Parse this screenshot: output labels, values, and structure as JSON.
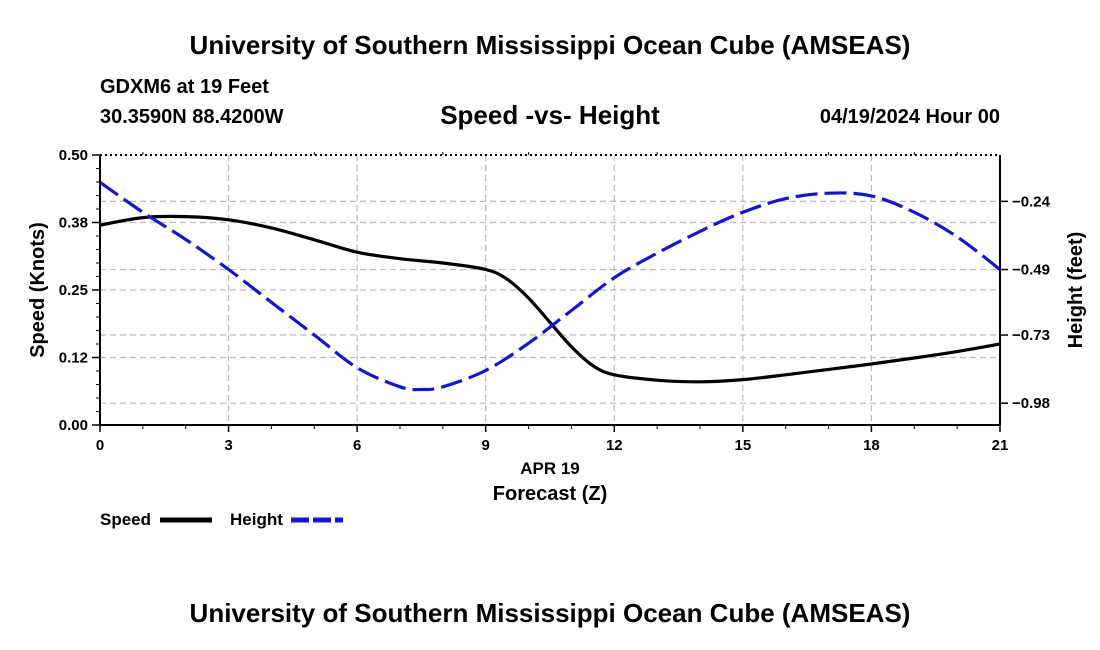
{
  "header": {
    "title": "University of Southern Mississippi Ocean Cube (AMSEAS)",
    "station": "GDXM6 at 19 Feet",
    "location": "30.3590N  88.4200W",
    "chart_title": "Speed -vs- Height",
    "datetime": "04/19/2024 Hour 00"
  },
  "footer": {
    "title": "University of Southern Mississippi Ocean Cube (AMSEAS)"
  },
  "colors": {
    "speed": "#000000",
    "height": "#1515cc",
    "grid": "#bbbbbb"
  },
  "chart_data": {
    "type": "line",
    "title": "Speed -vs- Height",
    "xlabel": "Forecast (Z)",
    "xdate": "APR 19",
    "ylabel": "Speed (Knots)",
    "y2label": "Height (feet)",
    "xlim": [
      0,
      21
    ],
    "ylim": [
      0,
      0.5
    ],
    "y2lim": [
      -1.06,
      -0.07
    ],
    "xticks": [
      0,
      3,
      6,
      9,
      12,
      15,
      18,
      21
    ],
    "xtick_labels": [
      "0",
      "3",
      "6",
      "9",
      "12",
      "15",
      "18",
      "21"
    ],
    "yticks": [
      0.0,
      0.125,
      0.25,
      0.375,
      0.5
    ],
    "ytick_labels": [
      "0.00",
      "0.12",
      "0.25",
      "0.38",
      "0.50"
    ],
    "y2ticks": [
      -0.24,
      -0.49,
      -0.73,
      -0.98
    ],
    "y2tick_labels": [
      "−0.24",
      "−0.49",
      "−0.73",
      "−0.98"
    ],
    "legend": "bottom-left",
    "series": [
      {
        "name": "Speed",
        "axis": "left",
        "style": "solid",
        "x": [
          0,
          1,
          2,
          3,
          4,
          5,
          6,
          7,
          8,
          9,
          9.5,
          10,
          10.5,
          11,
          11.5,
          12,
          13,
          14,
          15,
          16,
          17,
          18,
          19,
          20,
          21
        ],
        "values": [
          0.37,
          0.384,
          0.386,
          0.38,
          0.365,
          0.343,
          0.32,
          0.308,
          0.3,
          0.288,
          0.27,
          0.235,
          0.19,
          0.145,
          0.11,
          0.093,
          0.083,
          0.08,
          0.084,
          0.093,
          0.103,
          0.113,
          0.124,
          0.136,
          0.15
        ]
      },
      {
        "name": "Height",
        "axis": "right",
        "style": "dashed",
        "x": [
          0,
          1,
          2,
          3,
          4,
          5,
          6,
          7,
          7.5,
          8,
          9,
          10,
          11,
          12,
          13,
          14,
          15,
          16,
          17,
          18,
          19,
          20,
          21
        ],
        "values": [
          -0.17,
          -0.28,
          -0.38,
          -0.49,
          -0.61,
          -0.73,
          -0.85,
          -0.92,
          -0.93,
          -0.92,
          -0.86,
          -0.76,
          -0.64,
          -0.52,
          -0.43,
          -0.35,
          -0.28,
          -0.23,
          -0.21,
          -0.22,
          -0.28,
          -0.37,
          -0.49
        ]
      }
    ]
  }
}
